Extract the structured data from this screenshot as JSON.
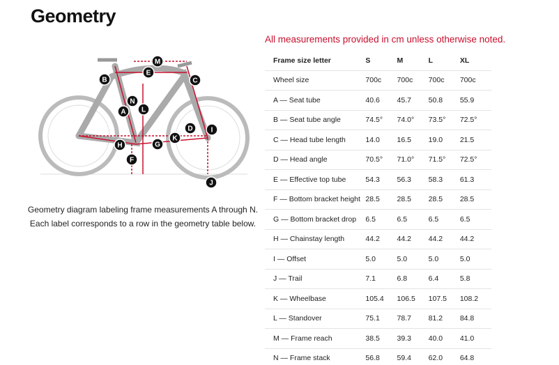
{
  "header": {
    "title": "Geometry"
  },
  "diagram": {
    "labels": [
      "M",
      "E",
      "B",
      "C",
      "N",
      "A",
      "L",
      "D",
      "I",
      "H",
      "G",
      "K",
      "F",
      "J"
    ],
    "caption": [
      "Geometry diagram labeling frame measurements A through N.",
      "Each label corresponds to a row in the geometry table below."
    ]
  },
  "note": "All measurements provided in cm unless otherwise noted.",
  "table": {
    "rows": [
      [
        "Frame size letter",
        "S",
        "M",
        "L",
        "XL"
      ],
      [
        "Wheel size",
        "700c",
        "700c",
        "700c",
        "700c"
      ],
      [
        "A — Seat tube",
        "40.6",
        "45.7",
        "50.8",
        "55.9"
      ],
      [
        "B — Seat tube angle",
        "74.5°",
        "74.0°",
        "73.5°",
        "72.5°"
      ],
      [
        "C — Head tube length",
        "14.0",
        "16.5",
        "19.0",
        "21.5"
      ],
      [
        "D — Head angle",
        "70.5°",
        "71.0°",
        "71.5°",
        "72.5°"
      ],
      [
        "E — Effective top tube",
        "54.3",
        "56.3",
        "58.3",
        "61.3"
      ],
      [
        "F — Bottom bracket height",
        "28.5",
        "28.5",
        "28.5",
        "28.5"
      ],
      [
        "G — Bottom bracket drop",
        "6.5",
        "6.5",
        "6.5",
        "6.5"
      ],
      [
        "H — Chainstay length",
        "44.2",
        "44.2",
        "44.2",
        "44.2"
      ],
      [
        "I — Offset",
        "5.0",
        "5.0",
        "5.0",
        "5.0"
      ],
      [
        "J — Trail",
        "7.1",
        "6.8",
        "6.4",
        "5.8"
      ],
      [
        "K — Wheelbase",
        "105.4",
        "106.5",
        "107.5",
        "108.2"
      ],
      [
        "L — Standover",
        "75.1",
        "78.7",
        "81.2",
        "84.8"
      ],
      [
        "M — Frame reach",
        "38.5",
        "39.3",
        "40.0",
        "41.0"
      ],
      [
        "N — Frame stack",
        "56.8",
        "59.4",
        "62.0",
        "64.8"
      ]
    ]
  }
}
